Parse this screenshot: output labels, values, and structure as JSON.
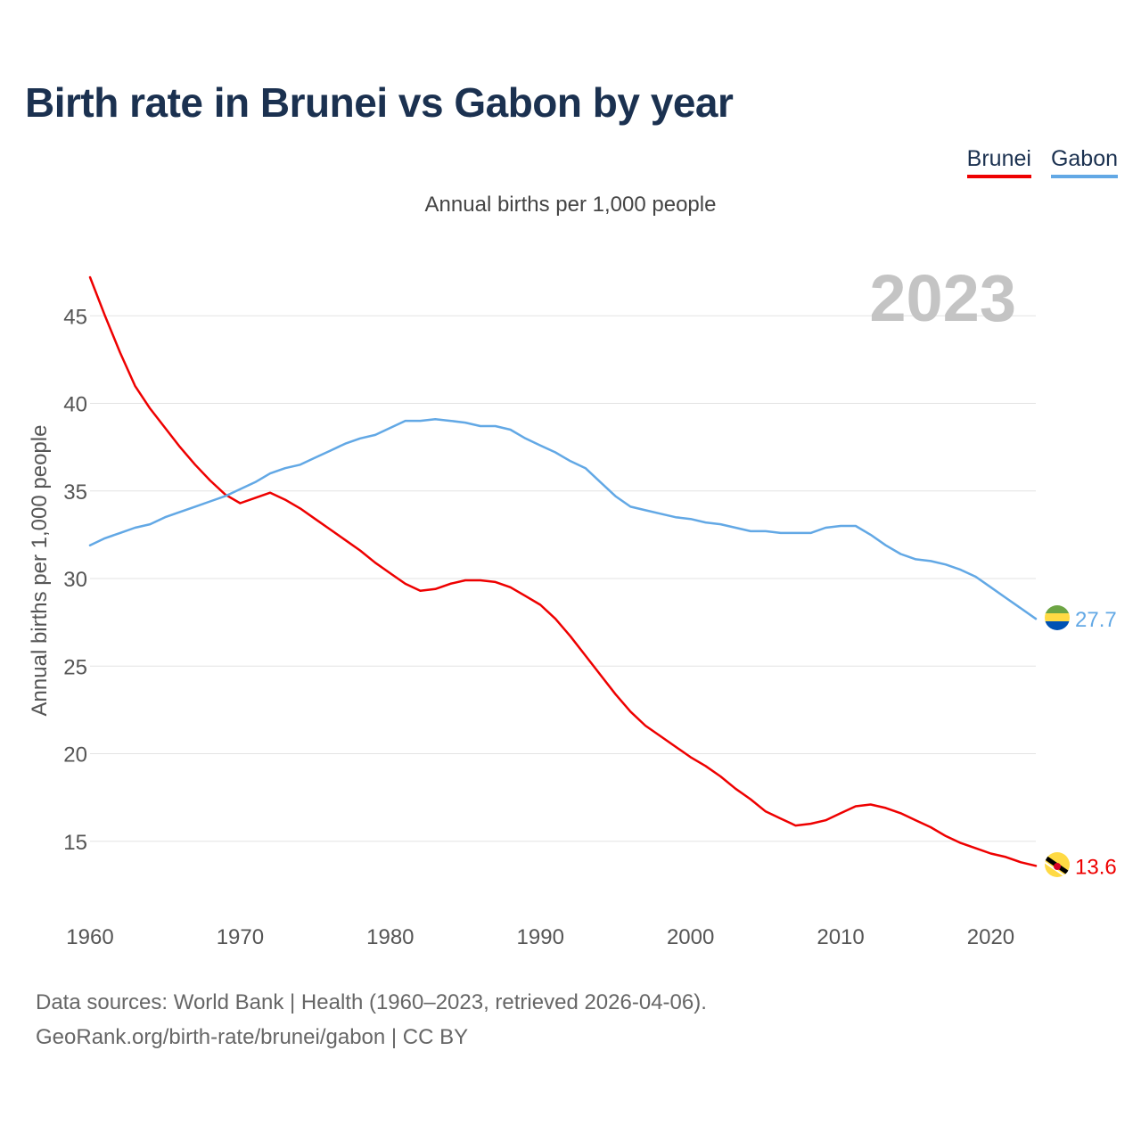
{
  "title": "Birth rate in Brunei vs Gabon by year",
  "subtitle": "Annual births per 1,000 people",
  "legend": [
    {
      "label": "Brunei",
      "color": "#ee0000"
    },
    {
      "label": "Gabon",
      "color": "#62a8e5"
    }
  ],
  "year_label": "2023",
  "source_line1": "Data sources: World Bank | Health (1960–2023, retrieved 2026-04-06).",
  "source_line2": "GeoRank.org/birth-rate/brunei/gabon | CC BY",
  "chart_data": {
    "type": "line",
    "title": "Birth rate in Brunei vs Gabon by year",
    "ylabel": "Annual births per 1,000 people",
    "xlabel": "",
    "xlim": [
      1960,
      2023
    ],
    "ylim": [
      11,
      48
    ],
    "x_ticks": [
      1960,
      1970,
      1980,
      1990,
      2000,
      2010,
      2020
    ],
    "y_ticks": [
      15,
      20,
      25,
      30,
      35,
      40,
      45
    ],
    "grid": true,
    "x": [
      1960,
      1961,
      1962,
      1963,
      1964,
      1965,
      1966,
      1967,
      1968,
      1969,
      1970,
      1971,
      1972,
      1973,
      1974,
      1975,
      1976,
      1977,
      1978,
      1979,
      1980,
      1981,
      1982,
      1983,
      1984,
      1985,
      1986,
      1987,
      1988,
      1989,
      1990,
      1991,
      1992,
      1993,
      1994,
      1995,
      1996,
      1997,
      1998,
      1999,
      2000,
      2001,
      2002,
      2003,
      2004,
      2005,
      2006,
      2007,
      2008,
      2009,
      2010,
      2011,
      2012,
      2013,
      2014,
      2015,
      2016,
      2017,
      2018,
      2019,
      2020,
      2021,
      2022,
      2023
    ],
    "series": [
      {
        "name": "Brunei",
        "color": "#ee0000",
        "end_label": "13.6",
        "values": [
          47.2,
          45.0,
          42.9,
          41.0,
          39.7,
          38.6,
          37.5,
          36.5,
          35.6,
          34.8,
          34.3,
          34.6,
          34.9,
          34.5,
          34.0,
          33.4,
          32.8,
          32.2,
          31.6,
          30.9,
          30.3,
          29.7,
          29.3,
          29.4,
          29.7,
          29.9,
          29.9,
          29.8,
          29.5,
          29.0,
          28.5,
          27.7,
          26.7,
          25.6,
          24.5,
          23.4,
          22.4,
          21.6,
          21.0,
          20.4,
          19.8,
          19.3,
          18.7,
          18.0,
          17.4,
          16.7,
          16.3,
          15.9,
          16.0,
          16.2,
          16.6,
          17.0,
          17.1,
          16.9,
          16.6,
          16.2,
          15.8,
          15.3,
          14.9,
          14.6,
          14.3,
          14.1,
          13.8,
          13.6
        ]
      },
      {
        "name": "Gabon",
        "color": "#62a8e5",
        "end_label": "27.7",
        "values": [
          31.9,
          32.3,
          32.6,
          32.9,
          33.1,
          33.5,
          33.8,
          34.1,
          34.4,
          34.7,
          35.1,
          35.5,
          36.0,
          36.3,
          36.5,
          36.9,
          37.3,
          37.7,
          38.0,
          38.2,
          38.6,
          39.0,
          39.0,
          39.1,
          39.0,
          38.9,
          38.7,
          38.7,
          38.5,
          38.0,
          37.6,
          37.2,
          36.7,
          36.3,
          35.5,
          34.7,
          34.1,
          33.9,
          33.7,
          33.5,
          33.4,
          33.2,
          33.1,
          32.9,
          32.7,
          32.7,
          32.6,
          32.6,
          32.6,
          32.9,
          33.0,
          33.0,
          32.5,
          31.9,
          31.4,
          31.1,
          31.0,
          30.8,
          30.5,
          30.1,
          29.5,
          28.9,
          28.3,
          27.7
        ]
      }
    ]
  }
}
